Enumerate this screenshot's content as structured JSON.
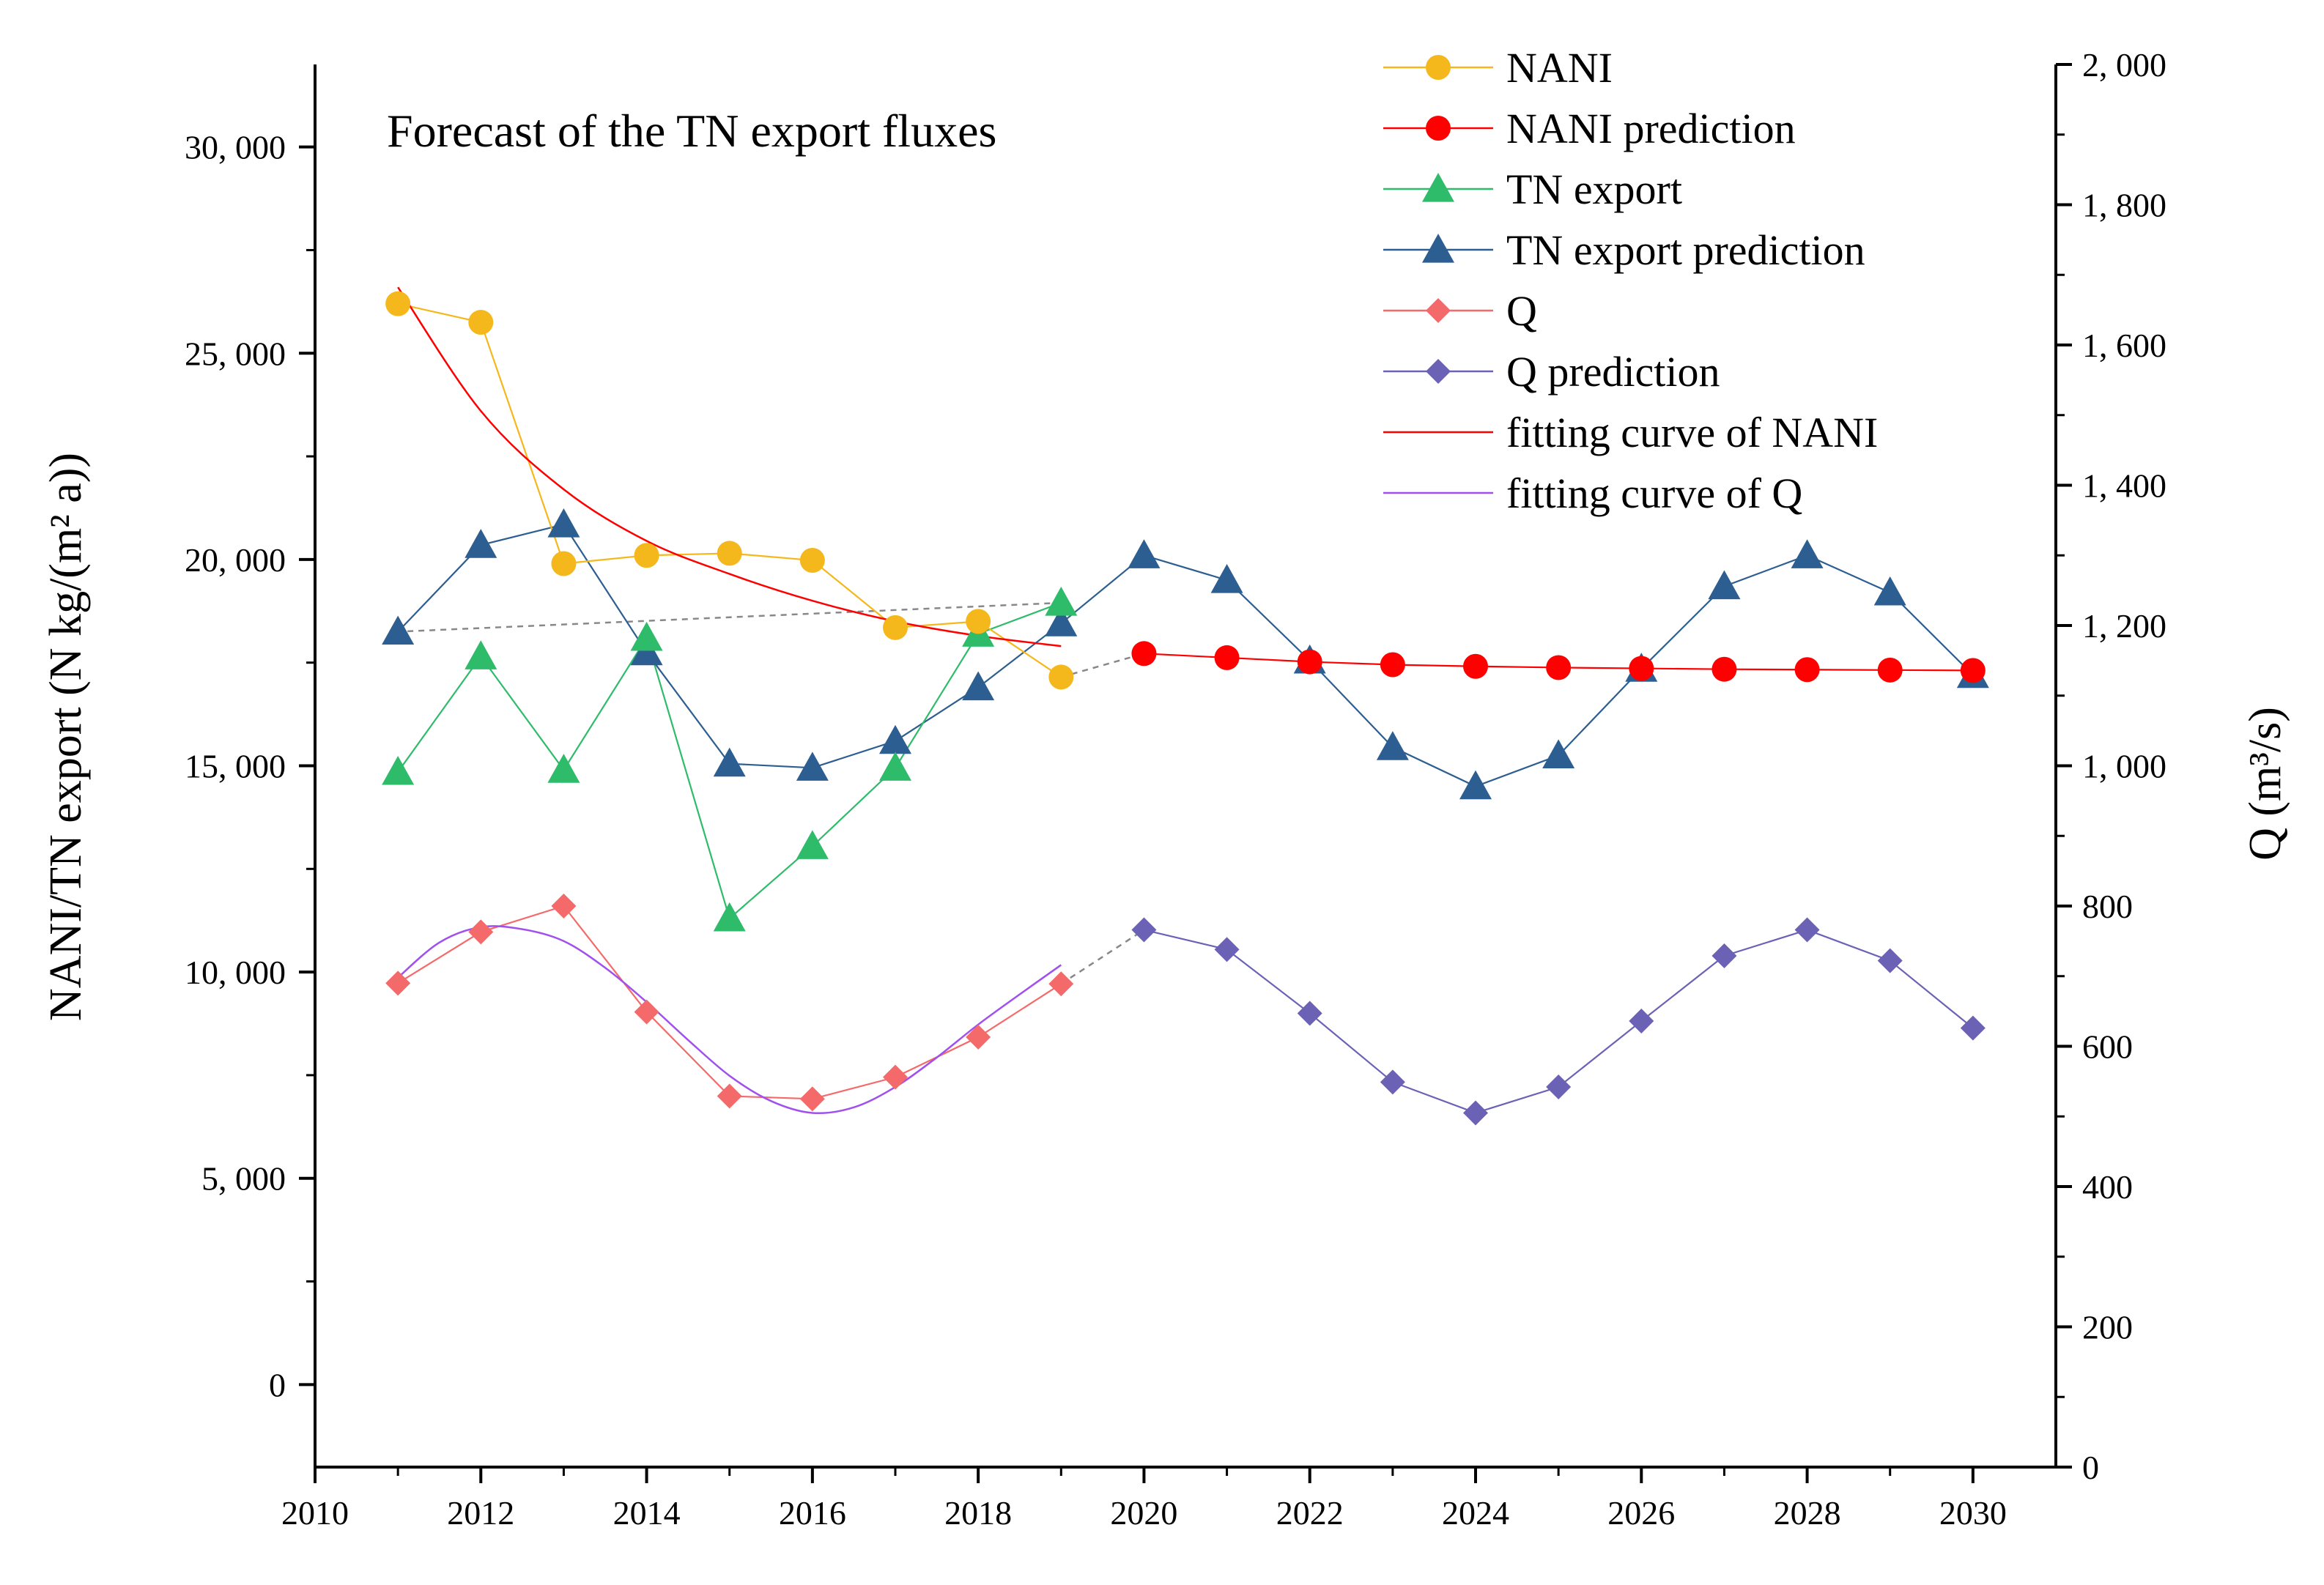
{
  "chart_data": {
    "type": "line",
    "title": "Forecast of the TN export fluxes",
    "xlabel": "",
    "ylabel": "NANI/TN export (N kg/(m² a))",
    "ylabel_right": "Q (m³/s)",
    "xlim": [
      2010,
      2031
    ],
    "ylim": [
      -2000,
      32000
    ],
    "ylim_right": [
      0,
      2000
    ],
    "x_ticks": [
      2010,
      2012,
      2014,
      2016,
      2018,
      2020,
      2022,
      2024,
      2026,
      2028,
      2030
    ],
    "x_tick_labels": [
      "2010",
      "2012",
      "2014",
      "2016",
      "2018",
      "2020",
      "2022",
      "2024",
      "2026",
      "2028",
      "2030"
    ],
    "y_ticks": [
      0,
      5000,
      10000,
      15000,
      20000,
      25000,
      30000
    ],
    "y_tick_labels": [
      "0",
      "5, 000",
      "10, 000",
      "15, 000",
      "20, 000",
      "25, 000",
      "30, 000"
    ],
    "y_right_ticks": [
      0,
      200,
      400,
      600,
      800,
      1000,
      1200,
      1400,
      1600,
      1800,
      2000
    ],
    "y_right_tick_labels": [
      "0",
      "200",
      "400",
      "600",
      "800",
      "1, 000",
      "1, 200",
      "1, 400",
      "1, 600",
      "1, 800",
      "2, 000"
    ],
    "grid": false,
    "legend_position": "top-right",
    "series": [
      {
        "name": "NANI",
        "axis": "left",
        "color": "#f5b81c",
        "marker": "circle",
        "x": [
          2011,
          2012,
          2013,
          2014,
          2015,
          2016,
          2017,
          2018,
          2019
        ],
        "y": [
          26200,
          25750,
          19900,
          20100,
          20150,
          19980,
          18350,
          18500,
          17150
        ]
      },
      {
        "name": "NANI prediction",
        "axis": "left",
        "color": "#ff0000",
        "marker": "circle",
        "x": [
          2020,
          2021,
          2022,
          2023,
          2024,
          2025,
          2026,
          2027,
          2028,
          2029,
          2030
        ],
        "y": [
          17720,
          17620,
          17520,
          17450,
          17410,
          17380,
          17360,
          17340,
          17330,
          17320,
          17310
        ]
      },
      {
        "name": "TN export",
        "axis": "left",
        "color": "#2ebb6a",
        "marker": "triangle",
        "x": [
          2011,
          2012,
          2013,
          2014,
          2015,
          2016,
          2017,
          2018,
          2019
        ],
        "y": [
          14850,
          17650,
          14900,
          18100,
          11300,
          13050,
          14950,
          18200,
          18950
        ]
      },
      {
        "name": "TN export prediction",
        "axis": "left",
        "color": "#2d5e91",
        "marker": "triangle",
        "x": [
          2011,
          2012,
          2013,
          2014,
          2015,
          2016,
          2017,
          2018,
          2019,
          2020,
          2021,
          2022,
          2023,
          2024,
          2025,
          2026,
          2027,
          2028,
          2029,
          2030
        ],
        "y": [
          18250,
          20350,
          20850,
          17750,
          15050,
          14950,
          15600,
          16900,
          18450,
          20100,
          19500,
          17550,
          15450,
          14500,
          15250,
          17350,
          19350,
          20100,
          19200,
          17200
        ]
      },
      {
        "name": "Q",
        "axis": "right",
        "color": "#f46a6a",
        "marker": "diamond",
        "x": [
          2011,
          2012,
          2013,
          2014,
          2015,
          2016,
          2017,
          2018,
          2019
        ],
        "y": [
          690,
          763,
          800,
          649,
          529,
          525,
          556,
          613,
          689
        ]
      },
      {
        "name": "Q prediction",
        "axis": "right",
        "color": "#6b62b5",
        "marker": "diamond",
        "x": [
          2020,
          2021,
          2022,
          2023,
          2024,
          2025,
          2026,
          2027,
          2028,
          2029,
          2030
        ],
        "y": [
          766,
          738,
          647,
          549,
          505,
          542,
          636,
          729,
          766,
          722,
          626
        ]
      },
      {
        "name": "fitting curve of NANI",
        "axis": "left",
        "color": "#ff0000",
        "marker": "none",
        "curve": "smooth",
        "x": [
          2011,
          2012,
          2013,
          2014,
          2015,
          2016,
          2017,
          2018,
          2019
        ],
        "y": [
          26600,
          23600,
          21700,
          20450,
          19650,
          19000,
          18500,
          18150,
          17900
        ]
      },
      {
        "name": "fitting curve of Q",
        "axis": "right",
        "color": "#a050ee",
        "marker": "none",
        "curve": "smooth",
        "x": [
          2011,
          2011.5,
          2012,
          2012.5,
          2013,
          2013.5,
          2014,
          2014.5,
          2015,
          2015.5,
          2016,
          2016.5,
          2017,
          2017.5,
          2018,
          2018.5,
          2019
        ],
        "y": [
          698,
          748,
          770,
          767,
          750,
          712,
          663,
          609,
          558,
          522,
          505,
          513,
          542,
          584,
          631,
          674,
          716
        ]
      }
    ]
  }
}
